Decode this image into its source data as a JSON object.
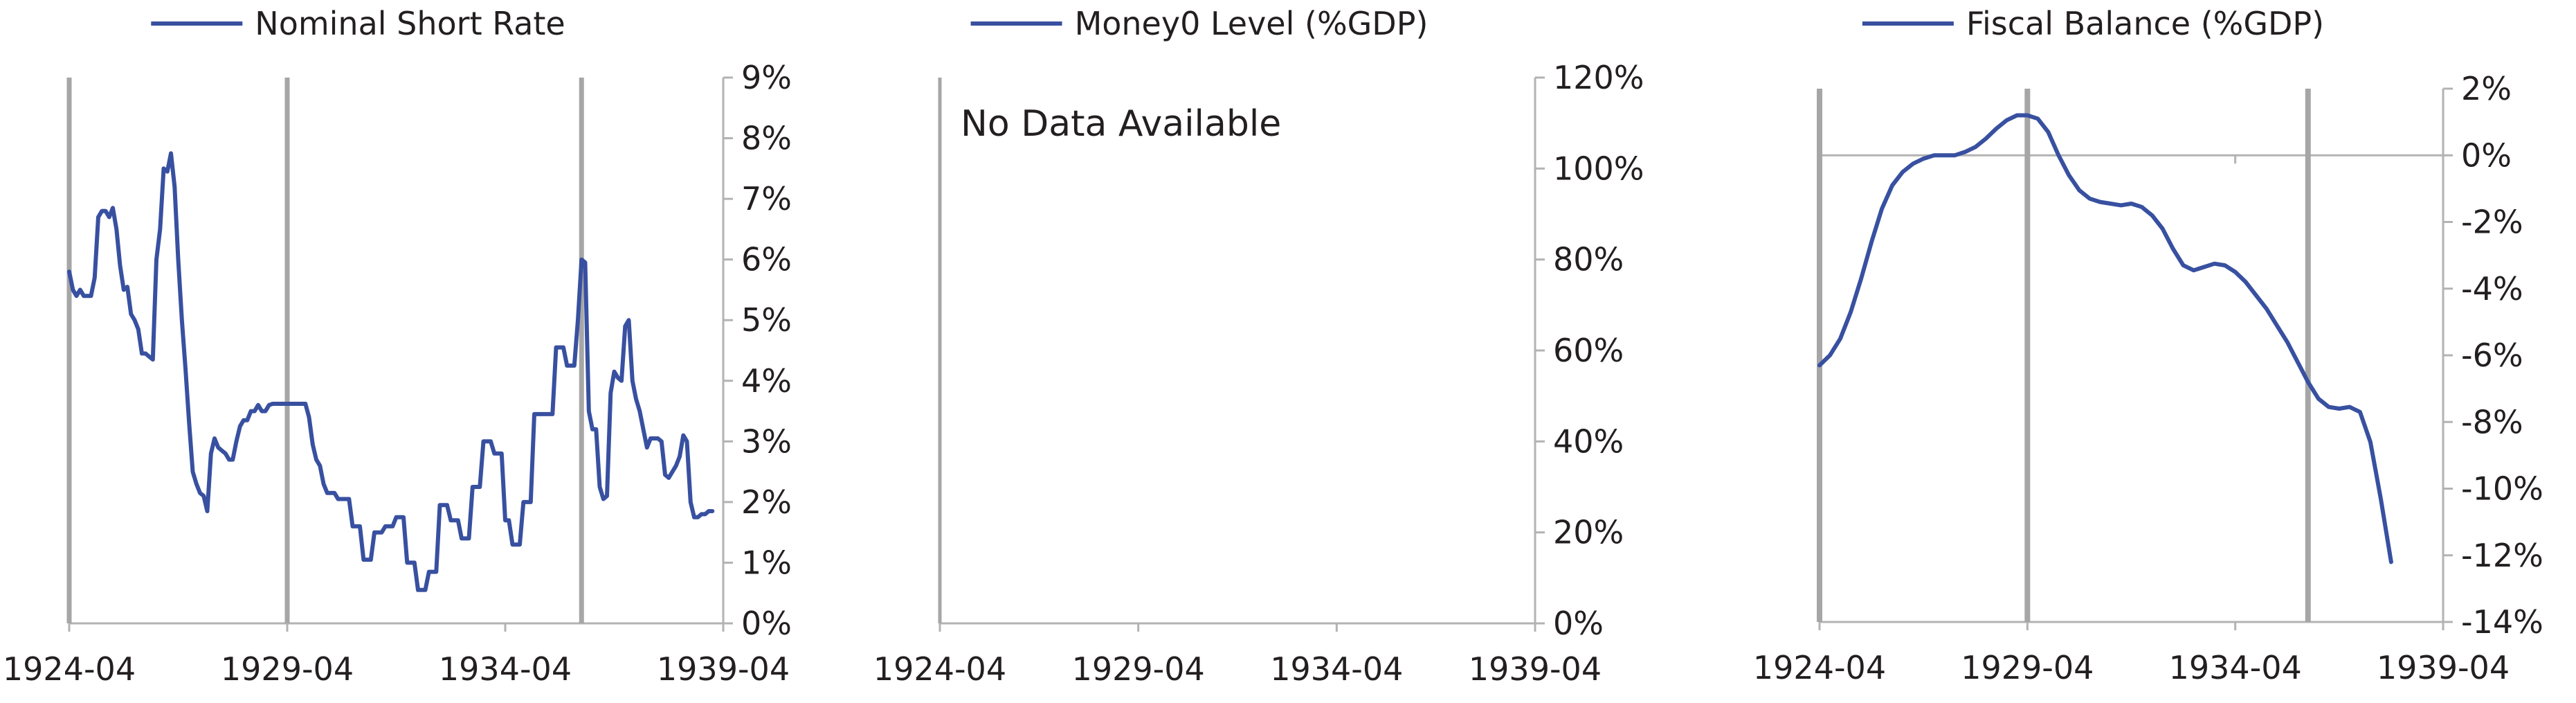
{
  "chart_data": [
    {
      "type": "line",
      "series": [
        {
          "name": "Nominal Short Rate",
          "points": [
            [
              "1924-04",
              5.8
            ],
            [
              "1924-05",
              5.5
            ],
            [
              "1924-06",
              5.4
            ],
            [
              "1924-07",
              5.5
            ],
            [
              "1924-08",
              5.4
            ],
            [
              "1924-09",
              5.4
            ],
            [
              "1924-10",
              5.4
            ],
            [
              "1924-11",
              5.7
            ],
            [
              "1924-12",
              6.7
            ],
            [
              "1925-01",
              6.8
            ],
            [
              "1925-02",
              6.8
            ],
            [
              "1925-03",
              6.7
            ],
            [
              "1925-04",
              6.85
            ],
            [
              "1925-05",
              6.5
            ],
            [
              "1925-06",
              5.9
            ],
            [
              "1925-07",
              5.5
            ],
            [
              "1925-08",
              5.55
            ],
            [
              "1925-09",
              5.1
            ],
            [
              "1925-10",
              5.0
            ],
            [
              "1925-11",
              4.85
            ],
            [
              "1925-12",
              4.45
            ],
            [
              "1926-01",
              4.45
            ],
            [
              "1926-02",
              4.4
            ],
            [
              "1926-03",
              4.35
            ],
            [
              "1926-04",
              6.0
            ],
            [
              "1926-05",
              6.5
            ],
            [
              "1926-06",
              7.5
            ],
            [
              "1926-07",
              7.45
            ],
            [
              "1926-08",
              7.75
            ],
            [
              "1926-09",
              7.2
            ],
            [
              "1926-10",
              6.0
            ],
            [
              "1926-11",
              5.0
            ],
            [
              "1926-12",
              4.2
            ],
            [
              "1927-01",
              3.3
            ],
            [
              "1927-02",
              2.5
            ],
            [
              "1927-03",
              2.3
            ],
            [
              "1927-04",
              2.15
            ],
            [
              "1927-05",
              2.1
            ],
            [
              "1927-06",
              1.85
            ],
            [
              "1927-07",
              2.8
            ],
            [
              "1927-08",
              3.05
            ],
            [
              "1927-09",
              2.9
            ],
            [
              "1927-10",
              2.85
            ],
            [
              "1927-11",
              2.8
            ],
            [
              "1927-12",
              2.7
            ],
            [
              "1928-01",
              2.7
            ],
            [
              "1928-02",
              3.0
            ],
            [
              "1928-03",
              3.25
            ],
            [
              "1928-04",
              3.35
            ],
            [
              "1928-05",
              3.35
            ],
            [
              "1928-06",
              3.5
            ],
            [
              "1928-07",
              3.5
            ],
            [
              "1928-08",
              3.6
            ],
            [
              "1928-09",
              3.5
            ],
            [
              "1928-10",
              3.5
            ],
            [
              "1928-11",
              3.6
            ],
            [
              "1928-12",
              3.62
            ],
            [
              "1929-01",
              3.62
            ],
            [
              "1929-02",
              3.62
            ],
            [
              "1929-03",
              3.62
            ],
            [
              "1929-04",
              3.62
            ],
            [
              "1929-05",
              3.62
            ],
            [
              "1929-06",
              3.62
            ],
            [
              "1929-07",
              3.62
            ],
            [
              "1929-08",
              3.62
            ],
            [
              "1929-09",
              3.62
            ],
            [
              "1929-10",
              3.4
            ],
            [
              "1929-11",
              2.95
            ],
            [
              "1929-12",
              2.7
            ],
            [
              "1930-01",
              2.6
            ],
            [
              "1930-02",
              2.3
            ],
            [
              "1930-03",
              2.15
            ],
            [
              "1930-04",
              2.15
            ],
            [
              "1930-05",
              2.15
            ],
            [
              "1930-06",
              2.05
            ],
            [
              "1930-07",
              2.05
            ],
            [
              "1930-08",
              2.05
            ],
            [
              "1930-09",
              2.05
            ],
            [
              "1930-10",
              1.6
            ],
            [
              "1930-11",
              1.6
            ],
            [
              "1930-12",
              1.6
            ],
            [
              "1931-01",
              1.05
            ],
            [
              "1931-02",
              1.05
            ],
            [
              "1931-03",
              1.05
            ],
            [
              "1931-04",
              1.5
            ],
            [
              "1931-05",
              1.5
            ],
            [
              "1931-06",
              1.5
            ],
            [
              "1931-07",
              1.6
            ],
            [
              "1931-08",
              1.6
            ],
            [
              "1931-09",
              1.6
            ],
            [
              "1931-10",
              1.75
            ],
            [
              "1931-11",
              1.75
            ],
            [
              "1931-12",
              1.75
            ],
            [
              "1932-01",
              1.0
            ],
            [
              "1932-02",
              1.0
            ],
            [
              "1932-03",
              1.0
            ],
            [
              "1932-04",
              0.55
            ],
            [
              "1932-05",
              0.55
            ],
            [
              "1932-06",
              0.55
            ],
            [
              "1932-07",
              0.85
            ],
            [
              "1932-08",
              0.85
            ],
            [
              "1932-09",
              0.85
            ],
            [
              "1932-10",
              1.95
            ],
            [
              "1932-11",
              1.95
            ],
            [
              "1932-12",
              1.95
            ],
            [
              "1933-01",
              1.7
            ],
            [
              "1933-02",
              1.7
            ],
            [
              "1933-03",
              1.7
            ],
            [
              "1933-04",
              1.4
            ],
            [
              "1933-05",
              1.4
            ],
            [
              "1933-06",
              1.4
            ],
            [
              "1933-07",
              2.25
            ],
            [
              "1933-08",
              2.25
            ],
            [
              "1933-09",
              2.25
            ],
            [
              "1933-10",
              3.0
            ],
            [
              "1933-11",
              3.0
            ],
            [
              "1933-12",
              3.0
            ],
            [
              "1934-01",
              2.8
            ],
            [
              "1934-02",
              2.8
            ],
            [
              "1934-03",
              2.8
            ],
            [
              "1934-04",
              1.7
            ],
            [
              "1934-05",
              1.7
            ],
            [
              "1934-06",
              1.3
            ],
            [
              "1934-07",
              1.3
            ],
            [
              "1934-08",
              1.3
            ],
            [
              "1934-09",
              2.0
            ],
            [
              "1934-10",
              2.0
            ],
            [
              "1934-11",
              2.0
            ],
            [
              "1934-12",
              3.45
            ],
            [
              "1935-01",
              3.45
            ],
            [
              "1935-02",
              3.45
            ],
            [
              "1935-03",
              3.45
            ],
            [
              "1935-04",
              3.45
            ],
            [
              "1935-05",
              3.45
            ],
            [
              "1935-06",
              4.55
            ],
            [
              "1935-07",
              4.55
            ],
            [
              "1935-08",
              4.55
            ],
            [
              "1935-09",
              4.25
            ],
            [
              "1935-10",
              4.25
            ],
            [
              "1935-11",
              4.25
            ],
            [
              "1935-12",
              5.0
            ],
            [
              "1936-01",
              6.0
            ],
            [
              "1936-02",
              5.95
            ],
            [
              "1936-03",
              3.5
            ],
            [
              "1936-04",
              3.2
            ],
            [
              "1936-05",
              3.2
            ],
            [
              "1936-06",
              2.25
            ],
            [
              "1936-07",
              2.05
            ],
            [
              "1936-08",
              2.1
            ],
            [
              "1936-09",
              3.8
            ],
            [
              "1936-10",
              4.15
            ],
            [
              "1936-11",
              4.05
            ],
            [
              "1936-12",
              4.0
            ],
            [
              "1937-01",
              4.9
            ],
            [
              "1937-02",
              5.0
            ],
            [
              "1937-03",
              4.0
            ],
            [
              "1937-04",
              3.7
            ],
            [
              "1937-05",
              3.5
            ],
            [
              "1937-06",
              3.2
            ],
            [
              "1937-07",
              2.9
            ],
            [
              "1937-08",
              3.05
            ],
            [
              "1937-09",
              3.05
            ],
            [
              "1937-10",
              3.05
            ],
            [
              "1937-11",
              3.0
            ],
            [
              "1937-12",
              2.45
            ],
            [
              "1938-01",
              2.4
            ],
            [
              "1938-02",
              2.5
            ],
            [
              "1938-03",
              2.6
            ],
            [
              "1938-04",
              2.75
            ],
            [
              "1938-05",
              3.1
            ],
            [
              "1938-06",
              3.0
            ],
            [
              "1938-07",
              2.0
            ],
            [
              "1938-08",
              1.75
            ],
            [
              "1938-09",
              1.75
            ],
            [
              "1938-10",
              1.8
            ],
            [
              "1938-11",
              1.8
            ],
            [
              "1938-12",
              1.85
            ],
            [
              "1939-01",
              1.85
            ]
          ]
        }
      ],
      "x_range": [
        "1924-04",
        "1939-04"
      ],
      "xticks": [
        "1924-04",
        "1929-04",
        "1934-04",
        "1939-04"
      ],
      "ylim": [
        0,
        9
      ],
      "yticks": [
        "0%",
        "1%",
        "2%",
        "3%",
        "4%",
        "5%",
        "6%",
        "7%",
        "8%",
        "9%"
      ],
      "y_axis_side": "right",
      "vertical_markers": [
        "1924-04",
        "1929-04",
        "1936-01"
      ],
      "legend_placement": "top-center"
    },
    {
      "type": "line",
      "series": [
        {
          "name": "Money0 Level (%GDP)",
          "points": []
        }
      ],
      "annotation": "No Data Available",
      "x_range": [
        "1924-04",
        "1939-04"
      ],
      "xticks": [
        "1924-04",
        "1929-04",
        "1934-04",
        "1939-04"
      ],
      "ylim": [
        0,
        120
      ],
      "yticks": [
        "0%",
        "20%",
        "40%",
        "60%",
        "80%",
        "100%",
        "120%"
      ],
      "y_axis_side": "right",
      "vertical_markers": [
        "1924-04"
      ],
      "legend_placement": "top-center"
    },
    {
      "type": "line",
      "series": [
        {
          "name": "Fiscal Balance (%GDP)",
          "points": [
            [
              "1924-04",
              -6.3
            ],
            [
              "1924-07",
              -6.0
            ],
            [
              "1924-10",
              -5.5
            ],
            [
              "1925-01",
              -4.7
            ],
            [
              "1925-04",
              -3.7
            ],
            [
              "1925-07",
              -2.6
            ],
            [
              "1925-10",
              -1.6
            ],
            [
              "1926-01",
              -0.9
            ],
            [
              "1926-04",
              -0.5
            ],
            [
              "1926-07",
              -0.25
            ],
            [
              "1926-10",
              -0.1
            ],
            [
              "1927-01",
              0.0
            ],
            [
              "1927-04",
              0.0
            ],
            [
              "1927-07",
              0.0
            ],
            [
              "1927-10",
              0.1
            ],
            [
              "1928-01",
              0.25
            ],
            [
              "1928-04",
              0.5
            ],
            [
              "1928-07",
              0.8
            ],
            [
              "1928-10",
              1.05
            ],
            [
              "1929-01",
              1.2
            ],
            [
              "1929-04",
              1.2
            ],
            [
              "1929-07",
              1.1
            ],
            [
              "1929-10",
              0.7
            ],
            [
              "1930-01",
              0.0
            ],
            [
              "1930-04",
              -0.6
            ],
            [
              "1930-07",
              -1.05
            ],
            [
              "1930-10",
              -1.3
            ],
            [
              "1931-01",
              -1.4
            ],
            [
              "1931-04",
              -1.45
            ],
            [
              "1931-07",
              -1.5
            ],
            [
              "1931-10",
              -1.45
            ],
            [
              "1932-01",
              -1.55
            ],
            [
              "1932-04",
              -1.8
            ],
            [
              "1932-07",
              -2.2
            ],
            [
              "1932-10",
              -2.8
            ],
            [
              "1933-01",
              -3.3
            ],
            [
              "1933-04",
              -3.45
            ],
            [
              "1933-07",
              -3.35
            ],
            [
              "1933-10",
              -3.25
            ],
            [
              "1934-01",
              -3.3
            ],
            [
              "1934-04",
              -3.5
            ],
            [
              "1934-07",
              -3.8
            ],
            [
              "1934-10",
              -4.2
            ],
            [
              "1935-01",
              -4.6
            ],
            [
              "1935-04",
              -5.1
            ],
            [
              "1935-07",
              -5.6
            ],
            [
              "1935-10",
              -6.2
            ],
            [
              "1936-01",
              -6.8
            ],
            [
              "1936-04",
              -7.3
            ],
            [
              "1936-07",
              -7.55
            ],
            [
              "1936-10",
              -7.6
            ],
            [
              "1937-01",
              -7.55
            ],
            [
              "1937-04",
              -7.7
            ],
            [
              "1937-07",
              -8.6
            ],
            [
              "1937-10",
              -10.3
            ],
            [
              "1938-01",
              -12.2
            ]
          ]
        }
      ],
      "x_range": [
        "1924-04",
        "1939-04"
      ],
      "xticks": [
        "1924-04",
        "1929-04",
        "1934-04",
        "1939-04"
      ],
      "ylim": [
        -14,
        2
      ],
      "yticks": [
        "-14%",
        "-12%",
        "-10%",
        "-8%",
        "-6%",
        "-4%",
        "-2%",
        "0%",
        "2%"
      ],
      "y_axis_side": "right",
      "vertical_markers": [
        "1924-04",
        "1929-04",
        "1936-01"
      ],
      "legend_placement": "top-center"
    }
  ],
  "colors": {
    "series": "#3850a0",
    "axis": "#b3b3b3",
    "marker": "#a6a6a6",
    "text": "#231f20"
  }
}
